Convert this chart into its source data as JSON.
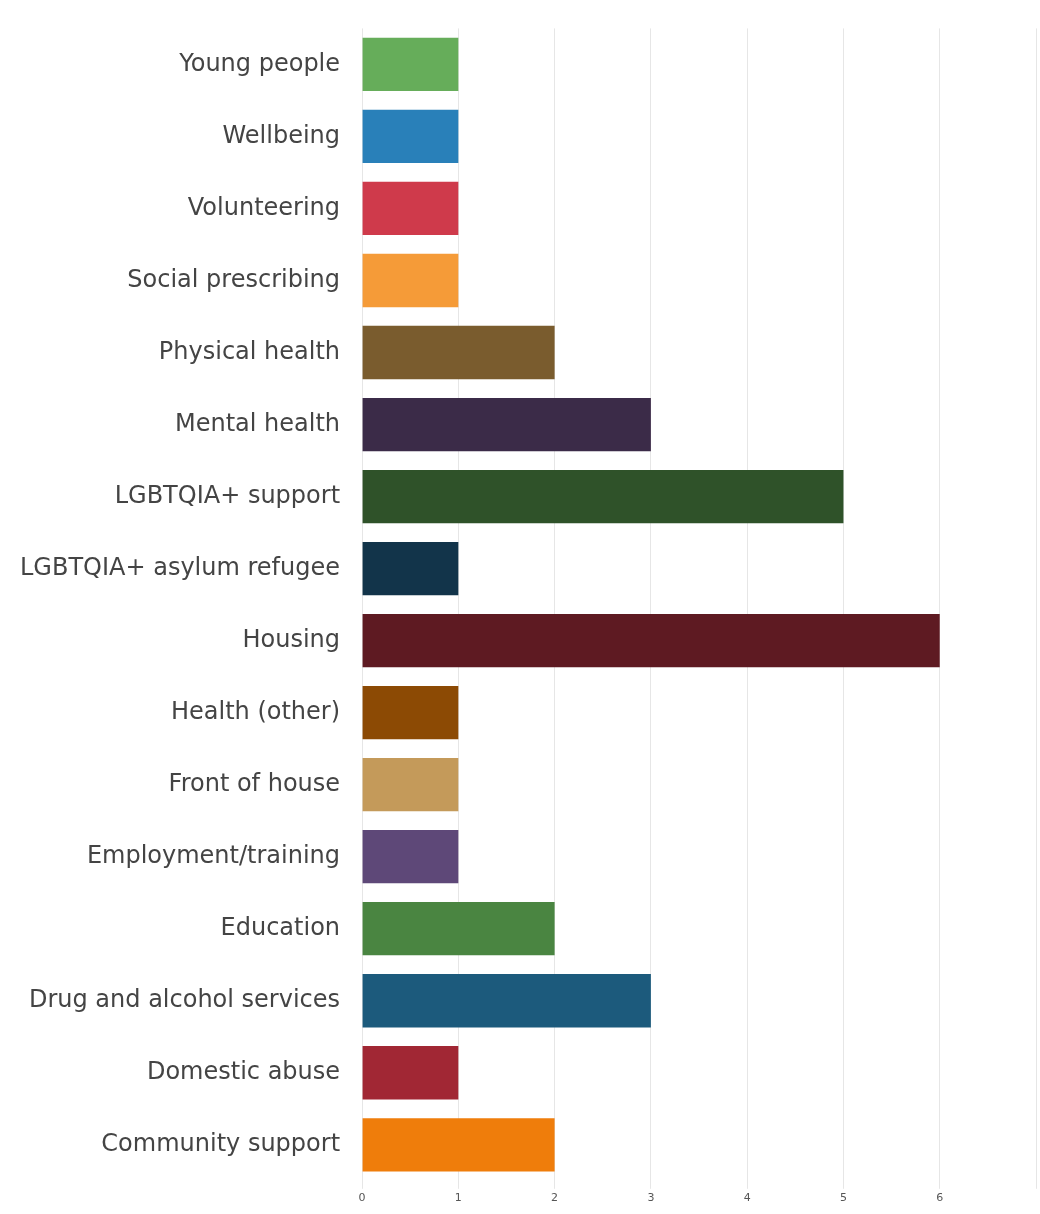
{
  "chart_data": {
    "type": "bar",
    "orientation": "horizontal",
    "categories": [
      "Young people",
      "Wellbeing",
      "Volunteering",
      "Social prescribing",
      "Physical health",
      "Mental health",
      "LGBTQIA+ support",
      "LGBTQIA+ asylum refugee",
      "Housing",
      "Health (other)",
      "Front of house",
      "Employment/training",
      "Education",
      "Drug and alcohol services",
      "Domestic abuse",
      "Community support"
    ],
    "values": [
      1,
      1,
      1,
      1,
      2,
      3,
      5,
      1,
      6,
      1,
      1,
      1,
      2,
      3,
      1,
      2
    ],
    "colors": [
      "#66ad5a",
      "#2980b9",
      "#cf3a4b",
      "#f59b38",
      "#7a5c2e",
      "#3b2b48",
      "#2f5229",
      "#12344a",
      "#5e1a22",
      "#8c4a04",
      "#c49a5a",
      "#5e4878",
      "#4a8541",
      "#1c5a7c",
      "#a12734",
      "#ef7d0b"
    ],
    "xlim": [
      0,
      7
    ],
    "xticks": [
      0,
      1,
      2,
      3,
      4,
      5,
      6,
      {
        "value": 7,
        "label": null
      }
    ],
    "grid": "x"
  }
}
